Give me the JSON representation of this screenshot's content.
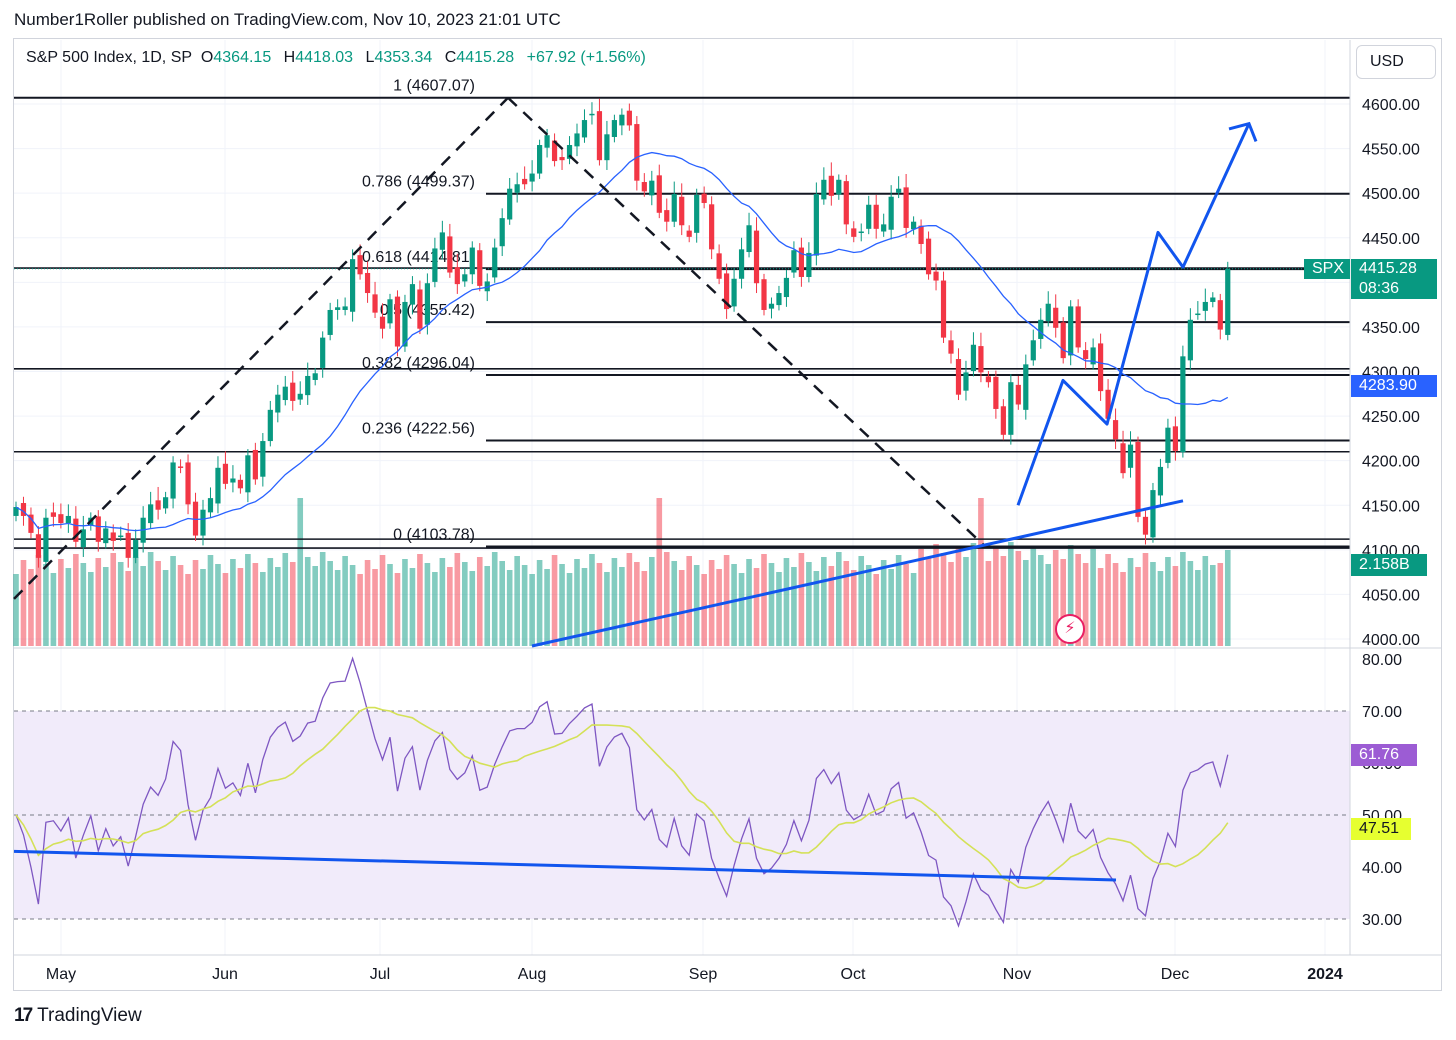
{
  "header": {
    "publisher": "Number1Roller published on TradingView.com, Nov 10, 2023 21:01 UTC",
    "symbol": "S&P 500 Index, 1D, SP",
    "open_label": "O",
    "open": "4364.15",
    "high_label": "H",
    "high": "4418.03",
    "low_label": "L",
    "low": "4353.34",
    "close_label": "C",
    "close": "4415.28",
    "change": "+67.92 (+1.56%)",
    "currency": "USD"
  },
  "footer": {
    "brand": "TradingView",
    "logo": "17"
  },
  "tags": {
    "spx_name": "SPX",
    "spx_price": "4415.28",
    "spx_timer": "08:36",
    "ma_value": "4283.90",
    "volume_value": "2.158B",
    "rsi_value": "61.76",
    "rsi_ma_value": "47.51"
  },
  "colors": {
    "up": "#089981",
    "down": "#f23645",
    "ma": "#2962ff",
    "drawing": "#1155ee",
    "rsi": "#7e57c2",
    "rsi_ma": "#d4e157",
    "rsi_band": "#f1ebfa"
  },
  "chart_data": {
    "type": "candlestick",
    "title": "S&P 500 Index, 1D, SP",
    "price_axis": {
      "min": 4000,
      "max": 4600,
      "ticks": [
        "4000.00",
        "4050.00",
        "4100.00",
        "4150.00",
        "4200.00",
        "4250.00",
        "4300.00",
        "4350.00",
        "4400.00",
        "4450.00",
        "4500.00",
        "4550.00",
        "4600.00"
      ]
    },
    "rsi_axis": {
      "ticks": [
        "30.00",
        "40.00",
        "50.00",
        "60.00",
        "70.00",
        "80.00"
      ],
      "band": [
        30,
        70
      ]
    },
    "x_ticks": [
      "May",
      "Jun",
      "Jul",
      "Aug",
      "Sep",
      "Oct",
      "Nov",
      "Dec",
      "2024"
    ],
    "fibonacci": [
      {
        "label": "1 (4607.07)",
        "price": 4607.07
      },
      {
        "label": "0.786 (4499.37)",
        "price": 4499.37
      },
      {
        "label": "0.618 (4414.81)",
        "price": 4414.81
      },
      {
        "label": "0.5 (4355.42)",
        "price": 4355.42
      },
      {
        "label": "0.382 (4296.04)",
        "price": 4296.04
      },
      {
        "label": "0.236 (4222.56)",
        "price": 4222.56
      },
      {
        "label": "0 (4103.78)",
        "price": 4103.78
      }
    ],
    "close_series": [
      4148,
      4138,
      4119,
      4091,
      4136,
      4137,
      4130,
      4138,
      4109,
      4123,
      4136,
      4109,
      4124,
      4110,
      4116,
      4091,
      4111,
      4136,
      4151,
      4145,
      4159,
      4198,
      4192,
      4151,
      4116,
      4145,
      4158,
      4192,
      4174,
      4180,
      4169,
      4206,
      4179,
      4222,
      4257,
      4274,
      4283,
      4267,
      4275,
      4295,
      4298,
      4338,
      4369,
      4372,
      4373,
      4426,
      4409,
      4388,
      4366,
      4348,
      4381,
      4328,
      4378,
      4398,
      4348,
      4399,
      4438,
      4456,
      4411,
      4398,
      4409,
      4439,
      4396,
      4401,
      4439,
      4472,
      4505,
      4510,
      4510,
      4522,
      4554,
      4565,
      4536,
      4537,
      4554,
      4567,
      4582,
      4589,
      4537,
      4566,
      4582,
      4588,
      4576,
      4514,
      4502,
      4514,
      4478,
      4468,
      4499,
      4464,
      4451,
      4498,
      4489,
      4437,
      4404,
      4370,
      4404,
      4437,
      4464,
      4399,
      4369,
      4376,
      4388,
      4405,
      4436,
      4406,
      4433,
      4499,
      4515,
      4497,
      4515,
      4465,
      4451,
      4457,
      4487,
      4460,
      4465,
      4496,
      4505,
      4461,
      4468,
      4443,
      4409,
      4402,
      4338,
      4320,
      4274,
      4299,
      4330,
      4299,
      4288,
      4258,
      4229,
      4288,
      4263,
      4308,
      4335,
      4358,
      4376,
      4349,
      4315,
      4373,
      4327,
      4314,
      4327,
      4278,
      4247,
      4224,
      4186,
      4218,
      4137,
      4117,
      4167,
      4193,
      4237,
      4211,
      4317,
      4358,
      4365,
      4378,
      4383,
      4347,
      4415
    ],
    "ma_value": 4283.9,
    "volume_last": "2.158B",
    "rsi_last": 61.76,
    "rsi_ma_last": 47.51
  }
}
